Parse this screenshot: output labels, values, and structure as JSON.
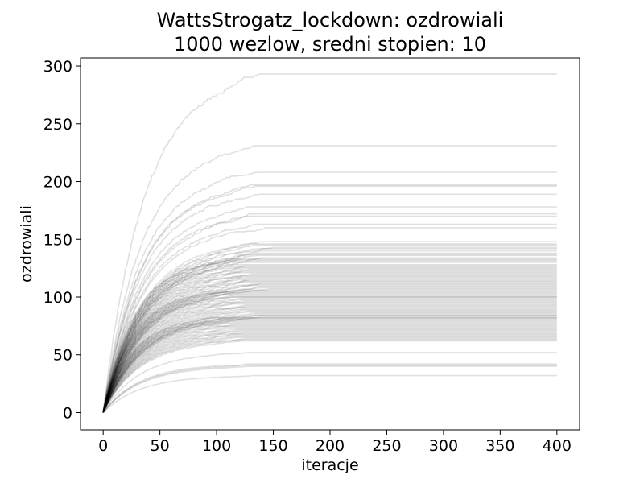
{
  "chart_data": {
    "type": "line",
    "title": "WattsStrogatz_lockdown: ozdrowiali",
    "subtitle": "1000 wezlow, sredni stopien: 10",
    "xlabel": "iteracje",
    "ylabel": "ozdrowiali",
    "xlim": [
      -20,
      420
    ],
    "ylim": [
      -15,
      307
    ],
    "xticks": [
      0,
      50,
      100,
      150,
      200,
      250,
      300,
      350,
      400
    ],
    "yticks": [
      0,
      50,
      100,
      150,
      200,
      250,
      300
    ],
    "grid": false,
    "line_color": "#000000",
    "line_opacity": 0.12,
    "series_count": 100,
    "series_shape": "saturating growth from 0 at iteration 0, each run levels off at its final value and stays flat until iteration 400",
    "x_end": 400,
    "final_values": [
      293,
      231,
      208,
      197,
      196,
      189,
      178,
      172,
      170,
      163,
      160,
      148,
      146,
      145,
      143,
      142,
      140,
      138,
      137,
      136,
      134,
      133,
      132,
      131,
      130,
      128,
      127,
      126,
      125,
      124,
      123,
      122,
      121,
      120,
      119,
      118,
      117,
      116,
      115,
      114,
      113,
      112,
      111,
      110,
      109,
      108,
      107,
      106,
      105,
      104,
      103,
      102,
      101,
      100,
      100,
      99,
      98,
      97,
      96,
      95,
      94,
      93,
      92,
      91,
      90,
      89,
      88,
      87,
      86,
      85,
      84,
      84,
      83,
      82,
      82,
      81,
      80,
      79,
      78,
      77,
      76,
      75,
      74,
      73,
      72,
      71,
      70,
      69,
      68,
      67,
      66,
      65,
      64,
      63,
      62,
      52,
      42,
      41,
      40,
      32
    ],
    "plateau_iterations": [
      150,
      150,
      150,
      150,
      150,
      150,
      150,
      150,
      150,
      150,
      150,
      150,
      150,
      150,
      150,
      150,
      150,
      150,
      150,
      150,
      150,
      150,
      150,
      150,
      150,
      150,
      150,
      150,
      150,
      150,
      150,
      150,
      150,
      150,
      150,
      150,
      150,
      150,
      150,
      150,
      150,
      150,
      150,
      150,
      150,
      150,
      150,
      150,
      150,
      150,
      150,
      150,
      150,
      150,
      150,
      150,
      150,
      150,
      150,
      150,
      150,
      150,
      150,
      150,
      150,
      150,
      150,
      150,
      150,
      150,
      150,
      150,
      150,
      150,
      150,
      150,
      150,
      150,
      150,
      150,
      150,
      150,
      150,
      150,
      150,
      150,
      150,
      150,
      150,
      150,
      150,
      150,
      150,
      150,
      150,
      150,
      150,
      150,
      150,
      150
    ]
  }
}
